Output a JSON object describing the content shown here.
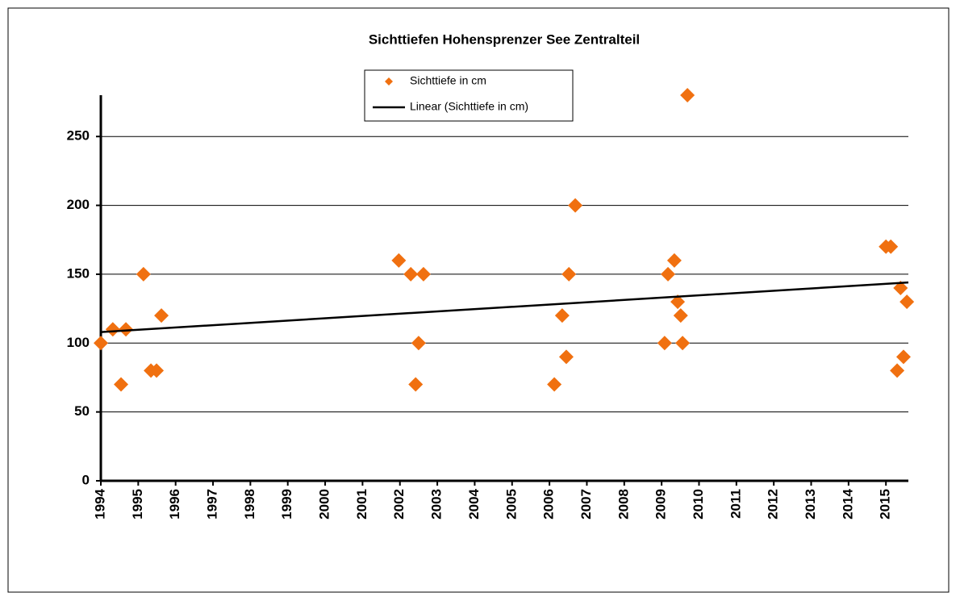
{
  "chart_data": {
    "type": "scatter",
    "title": "Sichttiefen Hohensprenzer See Zentralteil",
    "series": [
      {
        "name": "Sichttiefe in cm",
        "color": "#f07010",
        "x": [
          1994.0,
          1994.32,
          1994.54,
          1994.67,
          1995.14,
          1995.34,
          1995.49,
          1995.62,
          2001.97,
          2002.29,
          2002.42,
          2002.5,
          2002.63,
          2006.13,
          2006.34,
          2006.45,
          2006.52,
          2006.69,
          2009.08,
          2009.17,
          2009.34,
          2009.43,
          2009.51,
          2009.56,
          2009.69,
          2015.0,
          2015.13,
          2015.3,
          2015.39,
          2015.47,
          2015.56
        ],
        "values": [
          100,
          110,
          70,
          110,
          150,
          80,
          80,
          120,
          160,
          150,
          70,
          100,
          150,
          70,
          120,
          90,
          150,
          200,
          100,
          150,
          160,
          130,
          120,
          100,
          280,
          170,
          170,
          80,
          140,
          90,
          130
        ]
      }
    ],
    "trendline": {
      "name": "Linear (Sichttiefe in cm)",
      "color": "#000000",
      "x": [
        1994,
        2015.6
      ],
      "values": [
        108,
        144
      ]
    },
    "xlim": [
      1994,
      2015.6
    ],
    "xticks": [
      1994,
      1995,
      1996,
      1997,
      1998,
      1999,
      2000,
      2001,
      2002,
      2003,
      2004,
      2005,
      2006,
      2007,
      2008,
      2009,
      2010,
      2011,
      2012,
      2013,
      2014,
      2015
    ],
    "ylim": [
      0,
      280
    ],
    "yticks": [
      0,
      50,
      100,
      150,
      200,
      250
    ],
    "grid": true
  }
}
